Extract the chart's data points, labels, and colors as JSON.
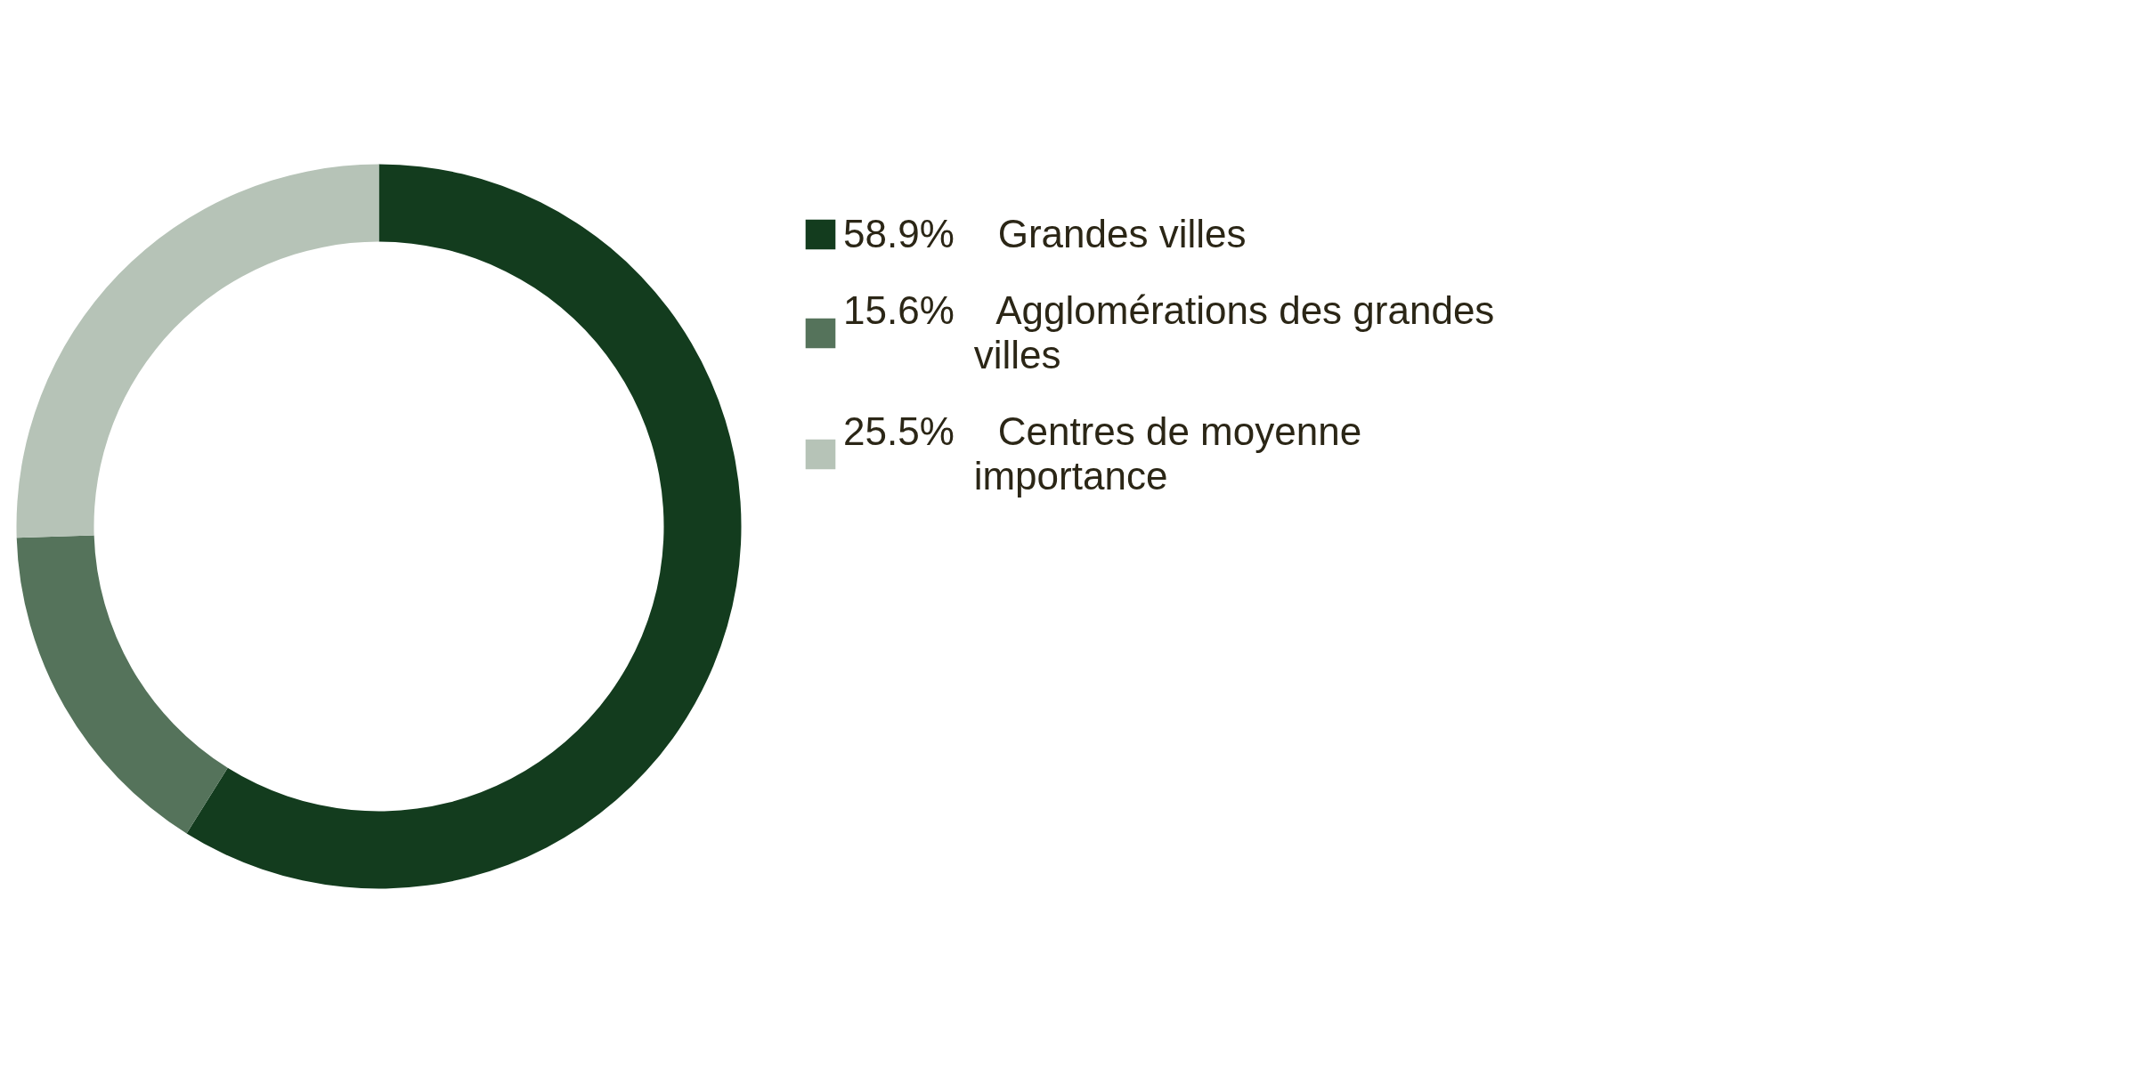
{
  "chart_data": {
    "type": "donut",
    "categories": [
      "Grandes villes",
      "Agglomérations des grandes villes",
      "Centres de moyenne importance"
    ],
    "values": [
      58.9,
      15.6,
      25.5
    ],
    "colors": [
      "#133c1e",
      "#55735b",
      "#b6c3b7"
    ],
    "value_labels": [
      "58.9%",
      "15.6%",
      "25.5%"
    ],
    "legend": "right"
  }
}
